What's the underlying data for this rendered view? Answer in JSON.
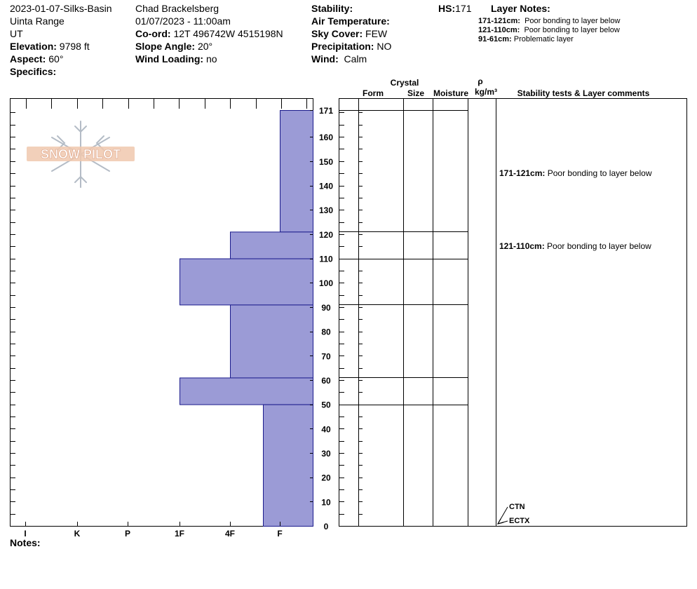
{
  "header": {
    "site": "2023-01-07-Silks-Basin",
    "range": "Uinta Range",
    "state": "UT",
    "elevation_label": "Elevation:",
    "elevation": "9798 ft",
    "aspect_label": "Aspect:",
    "aspect": "60°",
    "specifics_label": "Specifics:",
    "observer": "Chad Brackelsberg",
    "datetime": "01/07/2023 - 11:00am",
    "coord_label": "Co-ord:",
    "coord": "12T 496742W 4515198N",
    "slope_label": "Slope Angle:",
    "slope": "20°",
    "wind_loading_label": "Wind Loading:",
    "wind_loading": "no",
    "stability_label": "Stability:",
    "air_temp_label": "Air Temperature:",
    "sky_label": "Sky Cover:",
    "sky": "FEW",
    "precip_label": "Precipitation:",
    "precip": "NO",
    "wind_label": "Wind:",
    "wind": "Calm",
    "hs_label": "HS:",
    "hs": "171",
    "layer_notes_title": "Layer Notes:",
    "layer_notes": [
      {
        "range": "171-121cm:",
        "text": "Poor bonding to layer below"
      },
      {
        "range": "121-110cm:",
        "text": "Poor bonding to layer below"
      },
      {
        "range": "91-61cm:",
        "text": "Problematic layer"
      }
    ]
  },
  "logo_text": "SNOW PILOT",
  "columns": {
    "crystal": "Crystal",
    "form": "Form",
    "size": "Size",
    "moisture": "Moisture",
    "rho": "ρ",
    "density_unit": "kg/m³",
    "stability": "Stability tests & Layer comments"
  },
  "comments": [
    {
      "depth": 145,
      "range": "171-121cm:",
      "text": "Poor bonding to layer below"
    },
    {
      "depth": 115,
      "range": "121-110cm:",
      "text": "Poor bonding to layer below"
    }
  ],
  "tests": [
    {
      "label": "CTN",
      "depth": 0
    },
    {
      "label": "ECTX",
      "depth": 0
    }
  ],
  "notes_label": "Notes:",
  "colors": {
    "bar_fill": "#9b9bd6",
    "bar_stroke": "#1a1a8c"
  },
  "chart_data": {
    "type": "bar",
    "orientation": "horizontal",
    "hardness_scale": [
      "I",
      "K",
      "P",
      "1F",
      "4F",
      "F"
    ],
    "ylim": [
      0,
      171
    ],
    "y_ticks": [
      0,
      10,
      20,
      30,
      40,
      50,
      60,
      70,
      80,
      90,
      100,
      110,
      120,
      130,
      140,
      150,
      160,
      171
    ],
    "layers": [
      {
        "top": 171,
        "bottom": 121,
        "hardness": "F"
      },
      {
        "top": 121,
        "bottom": 110,
        "hardness": "4F"
      },
      {
        "top": 110,
        "bottom": 91,
        "hardness": "1F"
      },
      {
        "top": 91,
        "bottom": 61,
        "hardness": "4F"
      },
      {
        "top": 61,
        "bottom": 50,
        "hardness": "1F"
      },
      {
        "top": 50,
        "bottom": 0,
        "hardness": "4F-"
      }
    ]
  }
}
